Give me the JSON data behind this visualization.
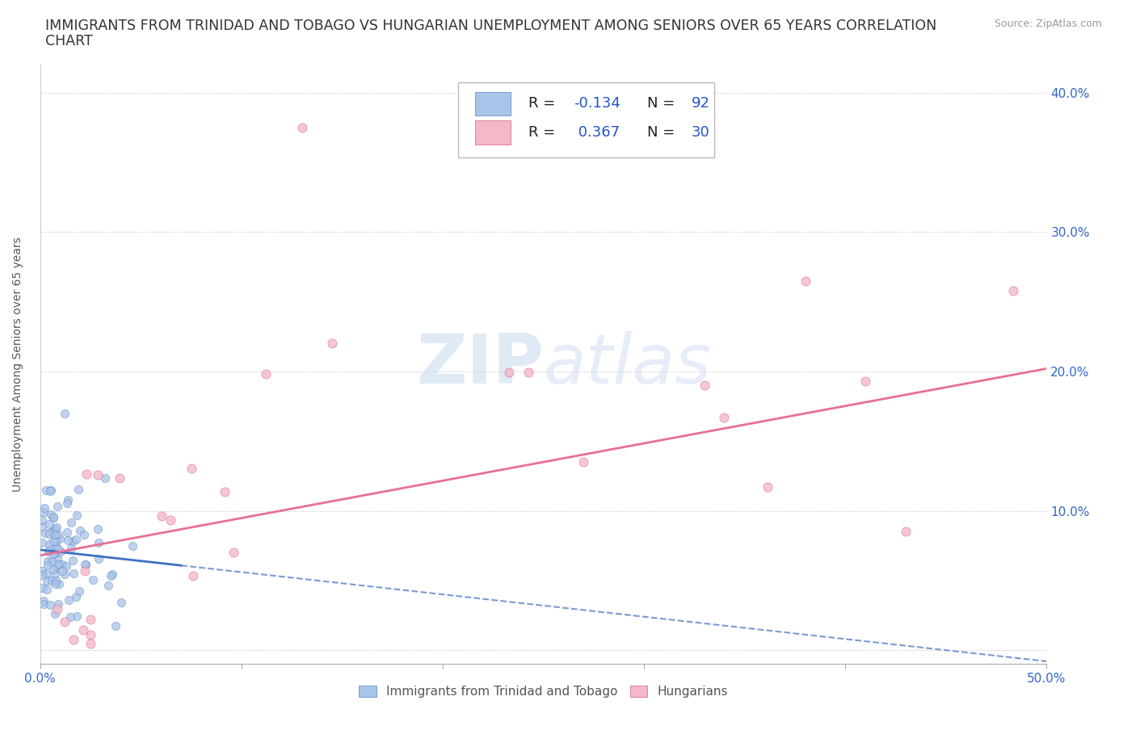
{
  "title_line1": "IMMIGRANTS FROM TRINIDAD AND TOBAGO VS HUNGARIAN UNEMPLOYMENT AMONG SENIORS OVER 65 YEARS CORRELATION",
  "title_line2": "CHART",
  "source": "Source: ZipAtlas.com",
  "ylabel": "Unemployment Among Seniors over 65 years",
  "xlim": [
    0.0,
    0.5
  ],
  "ylim": [
    -0.01,
    0.42
  ],
  "xticks": [
    0.0,
    0.1,
    0.2,
    0.3,
    0.4,
    0.5
  ],
  "yticks": [
    0.0,
    0.1,
    0.2,
    0.3,
    0.4
  ],
  "xticklabels": [
    "0.0%",
    "",
    "",
    "",
    "",
    "50.0%"
  ],
  "yticklabels_right": [
    "",
    "10.0%",
    "20.0%",
    "30.0%",
    "40.0%"
  ],
  "blue_color": "#a8c4e8",
  "blue_edge_color": "#5580c0",
  "pink_color": "#f4b8c8",
  "pink_edge_color": "#d06080",
  "blue_line_color": "#4070c0",
  "pink_line_color": "#e87090",
  "R_blue": -0.134,
  "N_blue": 92,
  "R_pink": 0.367,
  "N_pink": 30,
  "legend_label_blue": "Immigrants from Trinidad and Tobago",
  "legend_label_pink": "Hungarians",
  "watermark_zip": "ZIP",
  "watermark_atlas": "atlas",
  "pink_intercept": 0.068,
  "pink_slope": 0.268,
  "blue_intercept": 0.072,
  "blue_slope": -0.16
}
